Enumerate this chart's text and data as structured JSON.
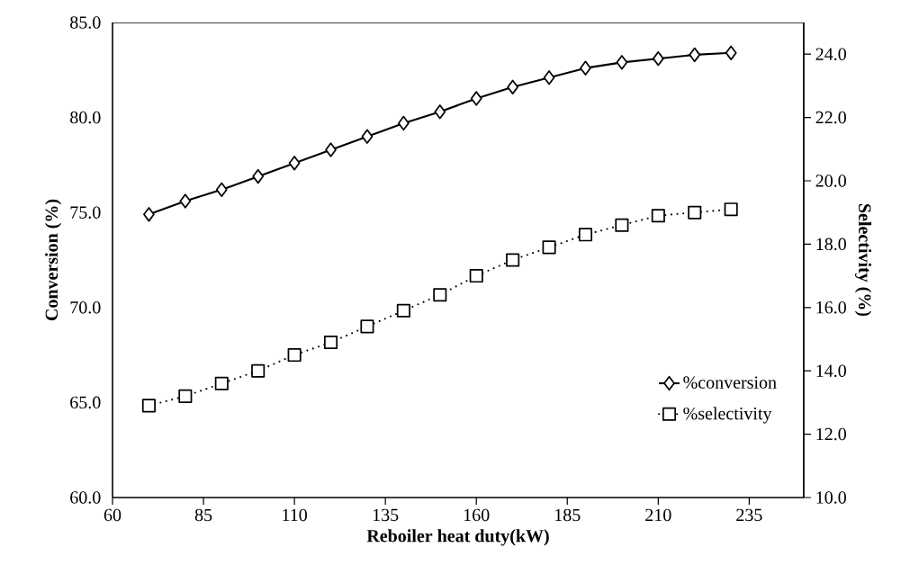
{
  "chart_data": {
    "type": "line",
    "xlabel": "Reboiler heat duty(kW)",
    "ylabel": "Conversion (%)",
    "y2label": "Selectivity (%)",
    "xlim": [
      60,
      250
    ],
    "xticks": [
      60,
      85,
      110,
      135,
      160,
      185,
      210,
      235
    ],
    "ylim": [
      60,
      85
    ],
    "yticks": [
      {
        "value": 60,
        "label": "60.0"
      },
      {
        "value": 65,
        "label": "65.0"
      },
      {
        "value": 70,
        "label": "70.0"
      },
      {
        "value": 75,
        "label": "75.0"
      },
      {
        "value": 80,
        "label": "80.0"
      },
      {
        "value": 85,
        "label": "85.0"
      }
    ],
    "y2lim": [
      10,
      25
    ],
    "y2ticks": [
      {
        "value": 10,
        "label": "10.0"
      },
      {
        "value": 12,
        "label": "12.0"
      },
      {
        "value": 14,
        "label": "14.0"
      },
      {
        "value": 16,
        "label": "16.0"
      },
      {
        "value": 18,
        "label": "18.0"
      },
      {
        "value": 20,
        "label": "20.0"
      },
      {
        "value": 22,
        "label": "22.0"
      },
      {
        "value": 24,
        "label": "24.0"
      }
    ],
    "x": [
      70,
      80,
      90,
      100,
      110,
      120,
      130,
      140,
      150,
      160,
      170,
      180,
      190,
      200,
      210,
      220,
      230
    ],
    "legend": "bottom right",
    "grid": false,
    "series": [
      {
        "name": "%conversion",
        "color": "#000000",
        "marker": "diamond",
        "line_style": "solid",
        "values": [
          74.9,
          75.6,
          76.2,
          76.9,
          77.6,
          78.3,
          79.0,
          79.7,
          80.3,
          81.0,
          81.6,
          82.1,
          82.6,
          82.9,
          83.1,
          83.3,
          83.4
        ]
      },
      {
        "name": "%selectivity",
        "color": "#000000",
        "marker": "square",
        "line_style": "dotted",
        "axis": "y2",
        "values": [
          12.9,
          13.2,
          13.6,
          14.0,
          14.5,
          14.9,
          15.4,
          15.9,
          16.4,
          17.0,
          17.5,
          17.9,
          18.3,
          18.6,
          18.9,
          19.0,
          19.1
        ]
      }
    ]
  }
}
